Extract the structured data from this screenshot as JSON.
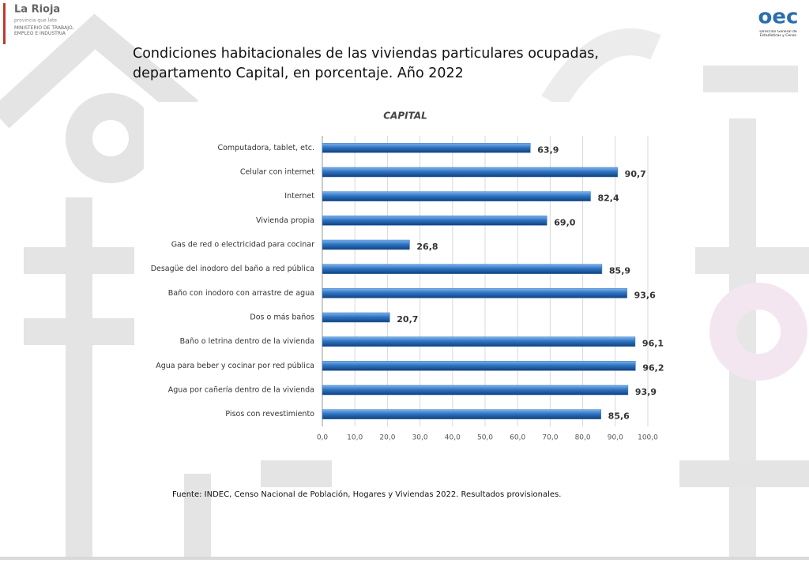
{
  "header": {
    "logo_left": "La Rioja",
    "logo_left_tagline": "provincia que late",
    "ministry": "MINISTERIO DE TRABAJO, EMPLEO E INDUSTRIA",
    "logo_right": "oec",
    "logo_right_caption": "Dirección General de Estadísticas y Censo"
  },
  "slide_title": "Condiciones habitacionales de las viviendas particulares ocupadas, departamento Capital, en porcentaje. Año 2022",
  "chart_data": {
    "type": "bar",
    "orientation": "horizontal",
    "title": "CAPITAL",
    "categories": [
      "Computadora, tablet, etc.",
      "Celular con internet",
      "Internet",
      "Vivienda propia",
      "Gas de red o electricidad para cocinar",
      "Desagüe del inodoro del baño a red pública",
      "Baño con inodoro con arrastre de agua",
      "Dos o más baños",
      "Baño o letrina dentro de la vivienda",
      "Agua para beber y cocinar por red pública",
      "Agua por cañería dentro de la vivienda",
      "Pisos con revestimiento"
    ],
    "values": [
      63.9,
      90.7,
      82.4,
      69.0,
      26.8,
      85.9,
      93.6,
      20.7,
      96.1,
      96.2,
      93.9,
      85.6
    ],
    "value_labels": [
      "63,9",
      "90,7",
      "82,4",
      "69,0",
      "26,8",
      "85,9",
      "93,6",
      "20,7",
      "96,1",
      "96,2",
      "93,9",
      "85,6"
    ],
    "color": "#2e75c4",
    "xlim": [
      0,
      100
    ],
    "xticks": [
      {
        "value": 0,
        "label": "0,0"
      },
      {
        "value": 10,
        "label": "10,0"
      },
      {
        "value": 20,
        "label": "20,0"
      },
      {
        "value": 30,
        "label": "30,0"
      },
      {
        "value": 40,
        "label": "40,0"
      },
      {
        "value": 50,
        "label": "50,0"
      },
      {
        "value": 60,
        "label": "60,0"
      },
      {
        "value": 70,
        "label": "70,0"
      },
      {
        "value": 80,
        "label": "80,0"
      },
      {
        "value": 90,
        "label": "90,0"
      },
      {
        "value": 100,
        "label": "100,0"
      }
    ],
    "grid": true
  },
  "source": "Fuente: INDEC, Censo Nacional de Población, Hogares y Viviendas 2022. Resultados provisionales."
}
